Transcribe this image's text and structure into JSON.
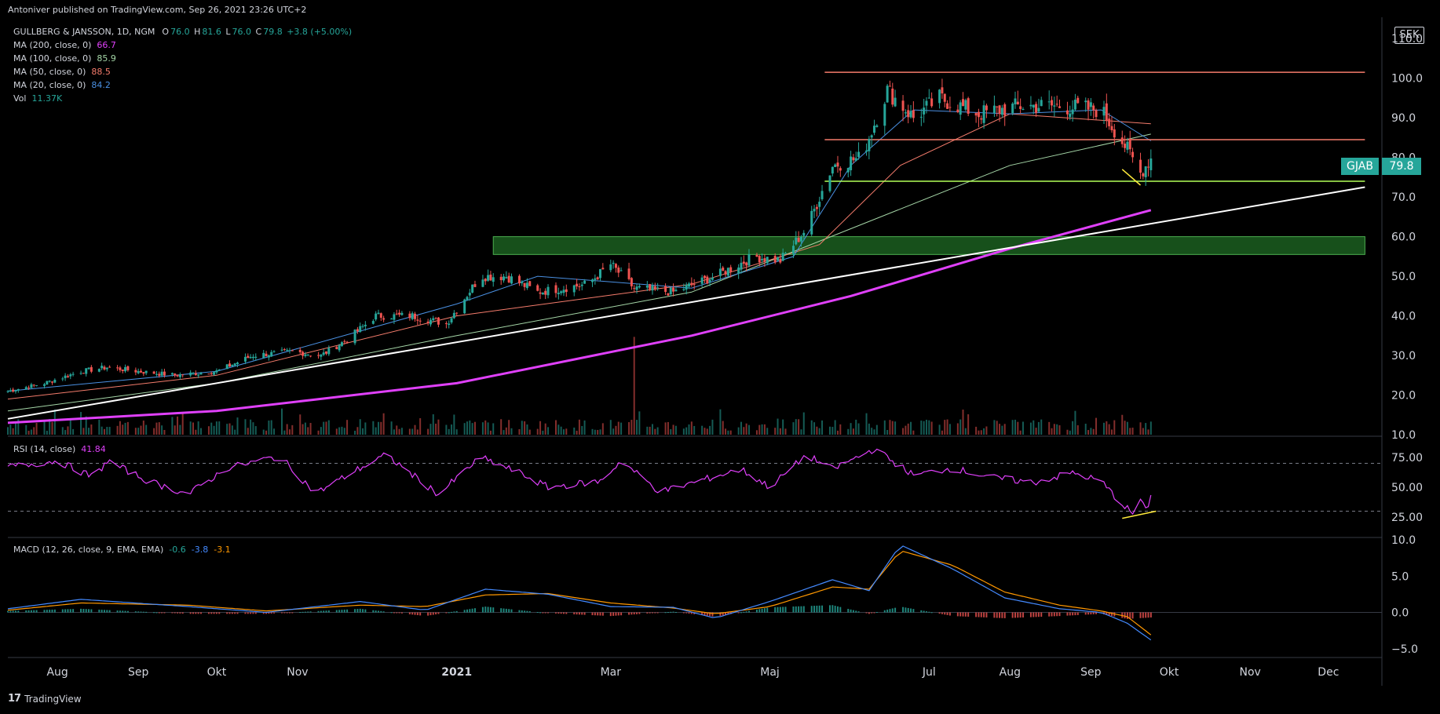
{
  "header": {
    "publish_line": "Antoniver published on TradingView.com, Sep 26, 2021 23:26 UTC+2"
  },
  "legend": {
    "symbol": "GULLBERG & JANSSON, 1D, NGM",
    "ohlc": {
      "o_label": "O",
      "o": "76.0",
      "h_label": "H",
      "h": "81.6",
      "l_label": "L",
      "l": "76.0",
      "c_label": "C",
      "c": "79.8",
      "change": "+3.8 (+5.00%)"
    },
    "ma200": {
      "label": "MA (200, close, 0)",
      "value": "66.7"
    },
    "ma100": {
      "label": "MA (100, close, 0)",
      "value": "85.9"
    },
    "ma50": {
      "label": "MA (50, close, 0)",
      "value": "88.5"
    },
    "ma20": {
      "label": "MA (20, close, 0)",
      "value": "84.2"
    },
    "vol": {
      "label": "Vol",
      "value": "11.37K"
    },
    "rsi": {
      "label": "RSI (14, close)",
      "value": "41.84"
    },
    "macd": {
      "label": "MACD (12, 26, close, 9, EMA, EMA)",
      "hist": "-0.6",
      "macd": "-3.8",
      "signal": "-3.1"
    }
  },
  "currency_label": "SEK",
  "price_tag": {
    "symbol": "GJAB",
    "price": "79.8"
  },
  "brand": {
    "name": "TradingView",
    "logo_text": "17"
  },
  "colors": {
    "up": "#26a69a",
    "down": "#ef5350",
    "ma200": "#e040fb",
    "ma100": "#a5d6a7",
    "ma50": "#f57c6c",
    "ma20": "#4a90e2",
    "rsi": "#e040fb",
    "macd": "#448aff",
    "signal": "#ff9800",
    "trend": "#ffffff",
    "resistance": "#f57c6c",
    "support": "#b2ff59",
    "zone": "#1b5e20",
    "annot": "#ffeb3b"
  },
  "chart_data": {
    "type": "candlestick",
    "x_axis": {
      "start": "2020-07-13",
      "end": "2021-12-20",
      "ticks": [
        {
          "date": "2020-08-01",
          "label": "Aug"
        },
        {
          "date": "2020-09-01",
          "label": "Sep"
        },
        {
          "date": "2020-10-01",
          "label": "Okt"
        },
        {
          "date": "2020-11-01",
          "label": "Nov"
        },
        {
          "date": "2021-01-01",
          "label": "2021"
        },
        {
          "date": "2021-03-01",
          "label": "Mar"
        },
        {
          "date": "2021-05-01",
          "label": "Maj"
        },
        {
          "date": "2021-07-01",
          "label": "Jul"
        },
        {
          "date": "2021-08-01",
          "label": "Aug"
        },
        {
          "date": "2021-09-01",
          "label": "Sep"
        },
        {
          "date": "2021-10-01",
          "label": "Okt"
        },
        {
          "date": "2021-11-01",
          "label": "Nov"
        },
        {
          "date": "2021-12-01",
          "label": "Dec"
        }
      ]
    },
    "price_axis": {
      "ylim": [
        10,
        115
      ],
      "ticks": [
        {
          "v": 10,
          "label": "10.0"
        },
        {
          "v": 20,
          "label": "20.0"
        },
        {
          "v": 30,
          "label": "30.0"
        },
        {
          "v": 40,
          "label": "40.0"
        },
        {
          "v": 50,
          "label": "50.0"
        },
        {
          "v": 60,
          "label": "60.0"
        },
        {
          "v": 70,
          "label": "70.0"
        },
        {
          "v": 80,
          "label": "80.0"
        },
        {
          "v": 90,
          "label": "90.0"
        },
        {
          "v": 100,
          "label": "100.0"
        },
        {
          "v": 110,
          "label": "110.0"
        }
      ]
    },
    "close_path": [
      [
        "2020-07-13",
        21
      ],
      [
        "2020-07-27",
        23
      ],
      [
        "2020-08-10",
        26
      ],
      [
        "2020-08-20",
        27
      ],
      [
        "2020-09-01",
        26
      ],
      [
        "2020-09-15",
        25
      ],
      [
        "2020-10-01",
        26
      ],
      [
        "2020-10-15",
        30
      ],
      [
        "2020-10-30",
        31
      ],
      [
        "2020-11-10",
        30
      ],
      [
        "2020-11-20",
        34
      ],
      [
        "2020-12-01",
        40
      ],
      [
        "2020-12-15",
        40
      ],
      [
        "2020-12-28",
        38
      ],
      [
        "2021-01-10",
        50
      ],
      [
        "2021-01-20",
        50
      ],
      [
        "2021-02-01",
        46
      ],
      [
        "2021-02-20",
        48
      ],
      [
        "2021-03-01",
        53
      ],
      [
        "2021-03-10",
        47
      ],
      [
        "2021-03-25",
        46
      ],
      [
        "2021-04-10",
        50
      ],
      [
        "2021-04-25",
        55
      ],
      [
        "2021-05-05",
        54
      ],
      [
        "2021-05-15",
        62
      ],
      [
        "2021-05-25",
        78
      ],
      [
        "2021-06-05",
        80
      ],
      [
        "2021-06-15",
        97
      ],
      [
        "2021-06-25",
        90
      ],
      [
        "2021-07-05",
        95
      ],
      [
        "2021-07-20",
        91
      ],
      [
        "2021-08-05",
        93
      ],
      [
        "2021-08-20",
        93
      ],
      [
        "2021-09-05",
        92
      ],
      [
        "2021-09-15",
        82
      ],
      [
        "2021-09-20",
        76
      ],
      [
        "2021-09-24",
        79.8
      ]
    ],
    "moving_averages": [
      {
        "name": "MA (200, close, 0)",
        "color_key": "ma200",
        "width": 3,
        "points": [
          [
            "2020-07-13",
            13
          ],
          [
            "2020-10-01",
            16
          ],
          [
            "2021-01-01",
            23
          ],
          [
            "2021-04-01",
            35
          ],
          [
            "2021-06-01",
            45
          ],
          [
            "2021-08-01",
            57
          ],
          [
            "2021-09-24",
            66.7
          ]
        ]
      },
      {
        "name": "MA (100, close, 0)",
        "color_key": "ma100",
        "width": 1,
        "points": [
          [
            "2020-07-13",
            16
          ],
          [
            "2020-10-01",
            23
          ],
          [
            "2021-01-01",
            35
          ],
          [
            "2021-04-01",
            46
          ],
          [
            "2021-06-01",
            62
          ],
          [
            "2021-08-01",
            78
          ],
          [
            "2021-09-24",
            85.9
          ]
        ]
      },
      {
        "name": "MA (50, close, 0)",
        "color_key": "ma50",
        "width": 1,
        "points": [
          [
            "2020-07-13",
            19
          ],
          [
            "2020-10-01",
            25
          ],
          [
            "2021-01-01",
            40
          ],
          [
            "2021-04-01",
            48
          ],
          [
            "2021-05-20",
            58
          ],
          [
            "2021-06-20",
            78
          ],
          [
            "2021-08-01",
            91
          ],
          [
            "2021-09-24",
            88.5
          ]
        ]
      },
      {
        "name": "MA (20, close, 0)",
        "color_key": "ma20",
        "width": 1,
        "points": [
          [
            "2020-07-13",
            21
          ],
          [
            "2020-10-01",
            26
          ],
          [
            "2021-01-01",
            43
          ],
          [
            "2021-02-01",
            50
          ],
          [
            "2021-04-01",
            47
          ],
          [
            "2021-05-10",
            55
          ],
          [
            "2021-06-01",
            78
          ],
          [
            "2021-06-25",
            92
          ],
          [
            "2021-08-01",
            91
          ],
          [
            "2021-09-05",
            92
          ],
          [
            "2021-09-24",
            84.2
          ]
        ]
      }
    ],
    "drawings": {
      "trendline": {
        "from": [
          "2020-07-13",
          14
        ],
        "to": [
          "2021-12-15",
          72.5
        ]
      },
      "resistance_top": {
        "from": [
          "2021-05-22",
          101.5
        ],
        "to": [
          "2021-12-15",
          101.5
        ]
      },
      "resistance_mid": {
        "from": [
          "2021-05-22",
          84.5
        ],
        "to": [
          "2021-12-15",
          84.5
        ]
      },
      "support": {
        "from": [
          "2021-05-22",
          74
        ],
        "to": [
          "2021-12-15",
          74
        ]
      },
      "zone": {
        "from": "2021-01-15",
        "to": "2021-12-15",
        "low": 55.5,
        "high": 60
      },
      "wedge_price": {
        "from": [
          "2021-09-13",
          77
        ],
        "to": [
          "2021-09-20",
          73
        ]
      }
    },
    "volume": {
      "max_k": 180,
      "spike": {
        "date": "2021-03-10",
        "value_k": 170
      }
    },
    "rsi": {
      "ylim": [
        10,
        90
      ],
      "levels": [
        30,
        70
      ],
      "ticks": [
        {
          "v": 25,
          "label": "25.00"
        },
        {
          "v": 50,
          "label": "50.00"
        },
        {
          "v": 75,
          "label": "75.00"
        }
      ],
      "path": [
        [
          "2020-07-13",
          67
        ],
        [
          "2020-08-01",
          72
        ],
        [
          "2020-08-15",
          58
        ],
        [
          "2020-08-20",
          72
        ],
        [
          "2020-09-05",
          55
        ],
        [
          "2020-09-20",
          44
        ],
        [
          "2020-10-05",
          66
        ],
        [
          "2020-10-25",
          76
        ],
        [
          "2020-11-08",
          45
        ],
        [
          "2020-11-25",
          66
        ],
        [
          "2020-12-05",
          77
        ],
        [
          "2020-12-25",
          44
        ],
        [
          "2021-01-10",
          75
        ],
        [
          "2021-01-25",
          62
        ],
        [
          "2021-02-05",
          50
        ],
        [
          "2021-02-25",
          55
        ],
        [
          "2021-03-05",
          72
        ],
        [
          "2021-03-20",
          46
        ],
        [
          "2021-04-05",
          56
        ],
        [
          "2021-04-20",
          65
        ],
        [
          "2021-05-01",
          50
        ],
        [
          "2021-05-15",
          77
        ],
        [
          "2021-05-25",
          65
        ],
        [
          "2021-06-10",
          82
        ],
        [
          "2021-06-25",
          60
        ],
        [
          "2021-07-10",
          66
        ],
        [
          "2021-07-25",
          58
        ],
        [
          "2021-08-10",
          54
        ],
        [
          "2021-08-25",
          62
        ],
        [
          "2021-09-05",
          55
        ],
        [
          "2021-09-12",
          38
        ],
        [
          "2021-09-17",
          28
        ],
        [
          "2021-09-20",
          40
        ],
        [
          "2021-09-22",
          30
        ],
        [
          "2021-09-24",
          41.84
        ]
      ],
      "wedge": {
        "from": [
          "2021-09-13",
          24
        ],
        "to": [
          "2021-09-26",
          30
        ]
      }
    },
    "macd": {
      "ylim": [
        -6,
        10
      ],
      "ticks": [
        {
          "v": -5,
          "label": "−5.0"
        },
        {
          "v": 0,
          "label": "0.0"
        },
        {
          "v": 5,
          "label": "5.0"
        },
        {
          "v": 10,
          "label": "10.0"
        }
      ],
      "macd_path": [
        [
          "2020-07-13",
          0.5
        ],
        [
          "2020-08-10",
          1.8
        ],
        [
          "2020-09-20",
          0.8
        ],
        [
          "2020-10-20",
          0
        ],
        [
          "2020-11-25",
          1.5
        ],
        [
          "2020-12-20",
          0.3
        ],
        [
          "2021-01-12",
          3.2
        ],
        [
          "2021-02-05",
          2.5
        ],
        [
          "2021-03-01",
          0.8
        ],
        [
          "2021-03-25",
          0.7
        ],
        [
          "2021-04-10",
          -0.8
        ],
        [
          "2021-05-01",
          1.5
        ],
        [
          "2021-05-25",
          4.5
        ],
        [
          "2021-06-08",
          3.0
        ],
        [
          "2021-06-20",
          9.3
        ],
        [
          "2021-07-10",
          6.0
        ],
        [
          "2021-07-30",
          2.0
        ],
        [
          "2021-08-20",
          0.5
        ],
        [
          "2021-09-05",
          0
        ],
        [
          "2021-09-15",
          -1.5
        ],
        [
          "2021-09-24",
          -3.8
        ]
      ],
      "signal_path": [
        [
          "2020-07-13",
          0.3
        ],
        [
          "2020-08-10",
          1.3
        ],
        [
          "2020-09-20",
          1.0
        ],
        [
          "2020-10-20",
          0.2
        ],
        [
          "2020-11-25",
          1.0
        ],
        [
          "2020-12-20",
          0.8
        ],
        [
          "2021-01-12",
          2.4
        ],
        [
          "2021-02-05",
          2.6
        ],
        [
          "2021-03-01",
          1.3
        ],
        [
          "2021-03-25",
          0.6
        ],
        [
          "2021-04-10",
          -0.2
        ],
        [
          "2021-05-01",
          0.8
        ],
        [
          "2021-05-25",
          3.5
        ],
        [
          "2021-06-08",
          3.2
        ],
        [
          "2021-06-20",
          8.5
        ],
        [
          "2021-07-10",
          6.5
        ],
        [
          "2021-07-30",
          2.8
        ],
        [
          "2021-08-20",
          1.0
        ],
        [
          "2021-09-05",
          0.2
        ],
        [
          "2021-09-15",
          -0.6
        ],
        [
          "2021-09-24",
          -3.1
        ]
      ]
    }
  }
}
